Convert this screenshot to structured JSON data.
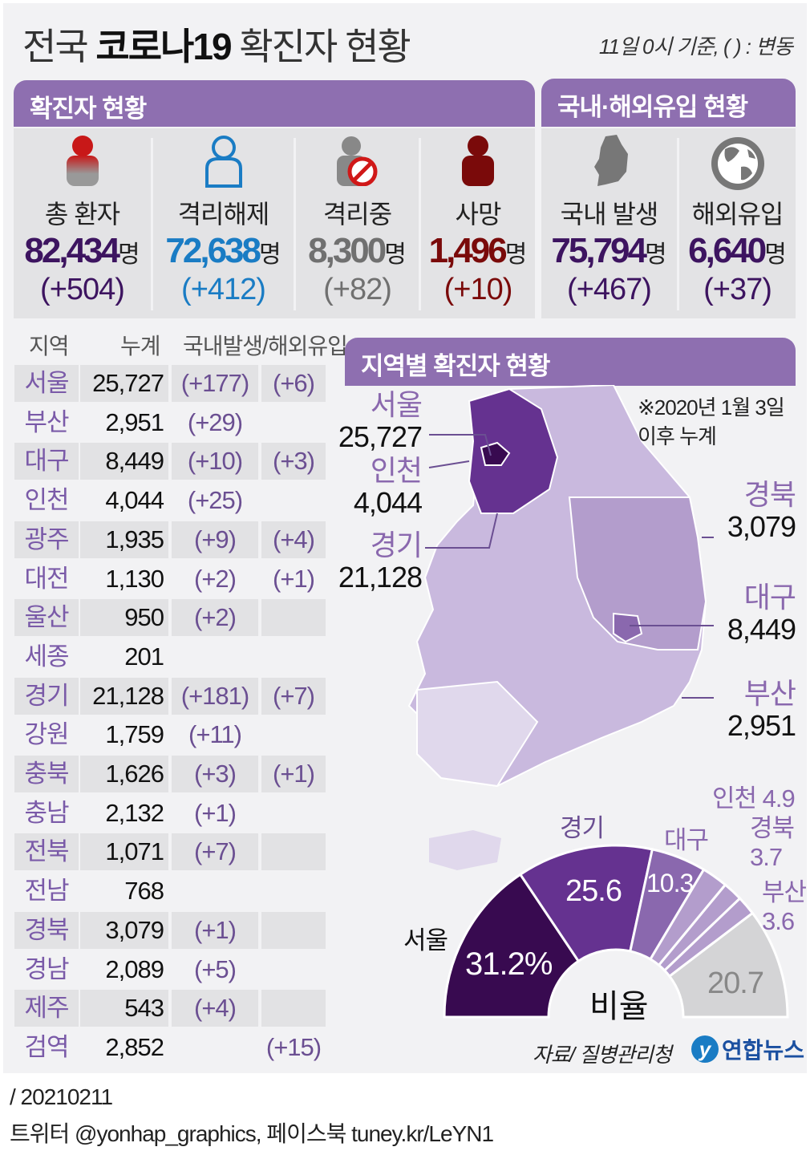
{
  "title": {
    "normal1": "전국 ",
    "bold": "코로나19",
    "normal2": " 확진자 현황"
  },
  "note": "11일 0시 기준, ( ) : 변동",
  "sections": {
    "confirmed": "확진자 현황",
    "origin": "국내·해외유입 현황",
    "regional": "지역별 확진자 현황"
  },
  "stats": [
    {
      "label": "총 환자",
      "value": "82,434",
      "unit": "명",
      "change": "(+504)",
      "color": "#3d1460",
      "icon": "person-red-icon"
    },
    {
      "label": "격리해제",
      "value": "72,638",
      "unit": "명",
      "change": "(+412)",
      "color": "#1a7cc4",
      "icon": "person-outline-icon"
    },
    {
      "label": "격리중",
      "value": "8,300",
      "unit": "명",
      "change": "(+82)",
      "color": "#707070",
      "icon": "person-prohibited-icon"
    },
    {
      "label": "사망",
      "value": "1,496",
      "unit": "명",
      "change": "(+10)",
      "color": "#7a0a0a",
      "icon": "person-dark-red-icon"
    },
    {
      "label": "국내 발생",
      "value": "75,794",
      "unit": "명",
      "change": "(+467)",
      "color": "#3d1460",
      "icon": "korea-map-icon"
    },
    {
      "label": "해외유입",
      "value": "6,640",
      "unit": "명",
      "change": "(+37)",
      "color": "#3d1460",
      "icon": "globe-icon"
    }
  ],
  "table": {
    "headers": [
      "지역",
      "누계",
      "국내발생/해외유입"
    ],
    "rows": [
      {
        "region": "서울",
        "total": "25,727",
        "domestic": "(+177)",
        "overseas": "(+6)"
      },
      {
        "region": "부산",
        "total": "2,951",
        "domestic": "(+29)",
        "overseas": ""
      },
      {
        "region": "대구",
        "total": "8,449",
        "domestic": "(+10)",
        "overseas": "(+3)"
      },
      {
        "region": "인천",
        "total": "4,044",
        "domestic": "(+25)",
        "overseas": ""
      },
      {
        "region": "광주",
        "total": "1,935",
        "domestic": "(+9)",
        "overseas": "(+4)"
      },
      {
        "region": "대전",
        "total": "1,130",
        "domestic": "(+2)",
        "overseas": "(+1)"
      },
      {
        "region": "울산",
        "total": "950",
        "domestic": "(+2)",
        "overseas": ""
      },
      {
        "region": "세종",
        "total": "201",
        "domestic": "",
        "overseas": ""
      },
      {
        "region": "경기",
        "total": "21,128",
        "domestic": "(+181)",
        "overseas": "(+7)"
      },
      {
        "region": "강원",
        "total": "1,759",
        "domestic": "(+11)",
        "overseas": ""
      },
      {
        "region": "충북",
        "total": "1,626",
        "domestic": "(+3)",
        "overseas": "(+1)"
      },
      {
        "region": "충남",
        "total": "2,132",
        "domestic": "(+1)",
        "overseas": ""
      },
      {
        "region": "전북",
        "total": "1,071",
        "domestic": "(+7)",
        "overseas": ""
      },
      {
        "region": "전남",
        "total": "768",
        "domestic": "",
        "overseas": ""
      },
      {
        "region": "경북",
        "total": "3,079",
        "domestic": "(+1)",
        "overseas": ""
      },
      {
        "region": "경남",
        "total": "2,089",
        "domestic": "(+5)",
        "overseas": ""
      },
      {
        "region": "제주",
        "total": "543",
        "domestic": "(+4)",
        "overseas": ""
      },
      {
        "region": "검역",
        "total": "2,852",
        "domestic": "",
        "overseas": "(+15)"
      }
    ]
  },
  "map": {
    "note": "※2020년 1월 3일\n이후 누계",
    "labels": [
      {
        "name": "서울",
        "value": "25,727"
      },
      {
        "name": "인천",
        "value": "4,044"
      },
      {
        "name": "경기",
        "value": "21,128"
      },
      {
        "name": "경북",
        "value": "3,079"
      },
      {
        "name": "대구",
        "value": "8,449"
      },
      {
        "name": "부산",
        "value": "2,951"
      }
    ],
    "colors": {
      "seoul": "#380a50",
      "gyeonggi": "#653290",
      "daegu": "#8a68ae",
      "gyeongbuk": "#b39dcc",
      "base": "#c9b9de",
      "light": "#e0d8ec"
    }
  },
  "chart_data": {
    "type": "pie",
    "variant": "half-donut",
    "center_label": "비율",
    "unit": "%",
    "categories": [
      "서울",
      "경기",
      "대구",
      "인천",
      "경북",
      "부산",
      ""
    ],
    "values": [
      31.2,
      25.6,
      10.3,
      4.9,
      3.7,
      3.6,
      20.7
    ],
    "value_labels": [
      "31.2%",
      "25.6",
      "10.3",
      "4.9",
      "3.7",
      "3.6",
      "20.7"
    ],
    "colors": [
      "#380a50",
      "#653290",
      "#8a68ae",
      "#b39dcc",
      "#b39dcc",
      "#b39dcc",
      "#d4d4d6"
    ]
  },
  "source": "자료/ 질병관리청",
  "logo": "연합뉴스",
  "footer": {
    "date": "/ 20210211",
    "social": "트위터 @yonhap_graphics, 페이스북 tuney.kr/LeYN1"
  }
}
